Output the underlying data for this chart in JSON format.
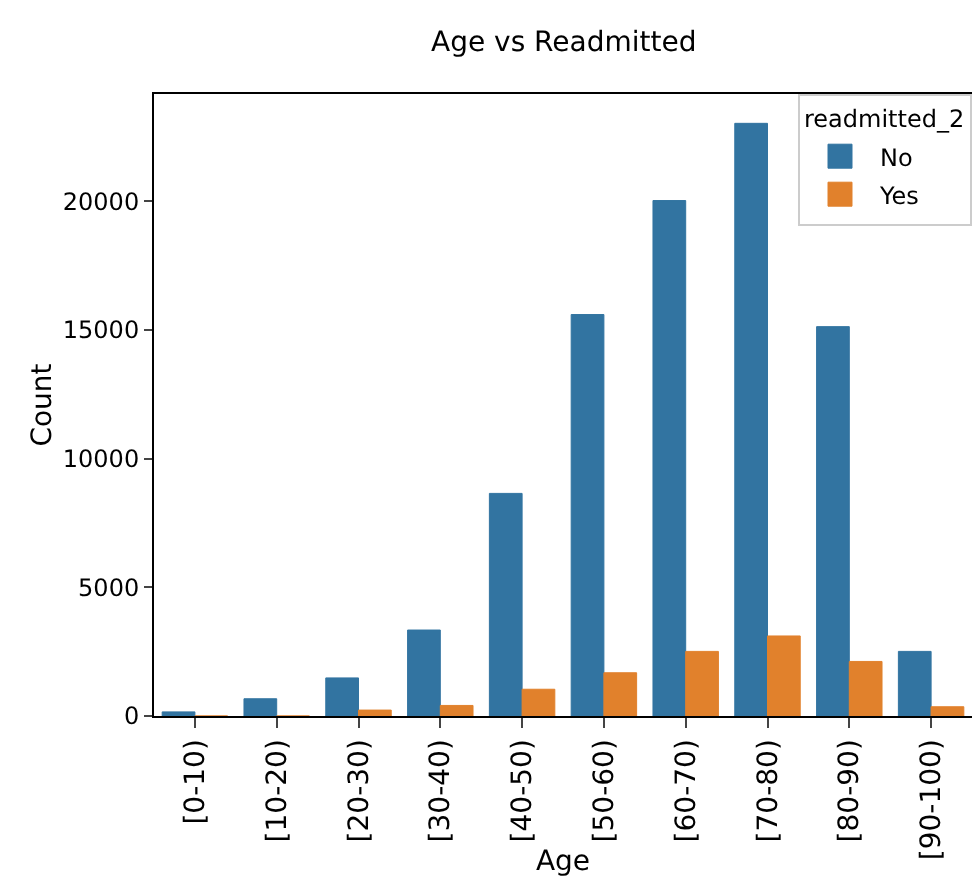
{
  "chart_data": {
    "type": "bar",
    "title": "Age vs Readmitted",
    "xlabel": "Age",
    "ylabel": "Count",
    "legend_title": "readmitted_2",
    "legend": "top right",
    "grid": false,
    "categories": [
      "[0-10)",
      "[10-20)",
      "[20-30)",
      "[30-40)",
      "[40-50)",
      "[50-60)",
      "[60-70)",
      "[70-80)",
      "[80-90)",
      "[90-100)"
    ],
    "series": [
      {
        "name": "No",
        "color": "#3274a1",
        "values": [
          160,
          670,
          1480,
          3340,
          8650,
          15600,
          20030,
          23030,
          15130,
          2510
        ]
      },
      {
        "name": "Yes",
        "color": "#e1812c",
        "values": [
          0,
          0,
          230,
          410,
          1040,
          1680,
          2510,
          3110,
          2120,
          360
        ]
      }
    ],
    "ylim": [
      0,
      24170
    ],
    "yticks": [
      0,
      5000,
      10000,
      15000,
      20000
    ]
  }
}
